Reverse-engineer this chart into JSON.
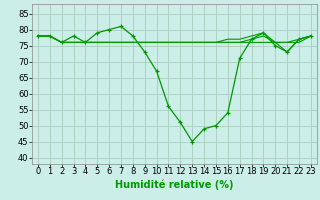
{
  "xlabel": "Humidité relative (%)",
  "background_color": "#cceee8",
  "grid_color": "#aaccbb",
  "line_color": "#009900",
  "xlim": [
    -0.5,
    23.5
  ],
  "ylim": [
    38,
    88
  ],
  "yticks": [
    40,
    45,
    50,
    55,
    60,
    65,
    70,
    75,
    80,
    85
  ],
  "xticks": [
    0,
    1,
    2,
    3,
    4,
    5,
    6,
    7,
    8,
    9,
    10,
    11,
    12,
    13,
    14,
    15,
    16,
    17,
    18,
    19,
    20,
    21,
    22,
    23
  ],
  "series_main": [
    78,
    78,
    76,
    78,
    76,
    79,
    80,
    81,
    78,
    73,
    67,
    56,
    51,
    45,
    49,
    50,
    54,
    71,
    77,
    79,
    75,
    73,
    77,
    78
  ],
  "series2": [
    78,
    78,
    76,
    76,
    76,
    76,
    76,
    76,
    76,
    76,
    76,
    76,
    76,
    76,
    76,
    76,
    76,
    76,
    77,
    78,
    76,
    76,
    77,
    78
  ],
  "series3": [
    78,
    78,
    76,
    76,
    76,
    76,
    76,
    76,
    76,
    76,
    76,
    76,
    76,
    76,
    76,
    76,
    77,
    77,
    78,
    79,
    76,
    73,
    77,
    78
  ],
  "series4": [
    78,
    78,
    76,
    76,
    76,
    76,
    76,
    76,
    76,
    76,
    76,
    76,
    76,
    76,
    76,
    76,
    76,
    76,
    76,
    76,
    76,
    76,
    76,
    78
  ],
  "xlabel_fontsize": 7,
  "tick_fontsize": 6
}
